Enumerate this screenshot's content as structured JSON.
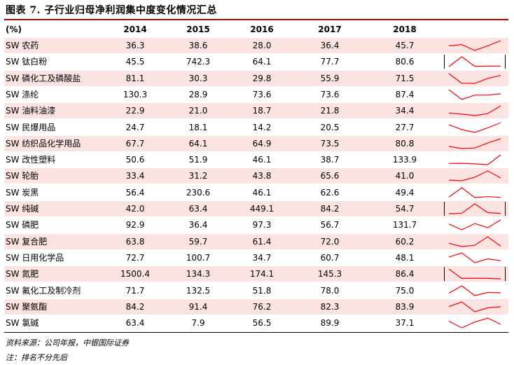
{
  "title": "图表 7. 子行业归母净利润集中度变化情况汇总",
  "table": {
    "unit_header": "(%)",
    "years": [
      "2014",
      "2015",
      "2016",
      "2017",
      "2018"
    ],
    "sparkline_color": "#ff0000",
    "shade_color": "#fbe3e1",
    "rows": [
      {
        "name": "SW 农药",
        "values": [
          36.3,
          38.6,
          28.0,
          36.4,
          45.7
        ],
        "labels": [
          "36.3",
          "38.6",
          "28.0",
          "36.4",
          "45.7"
        ]
      },
      {
        "name": "SW 钛白粉",
        "values": [
          45.5,
          742.3,
          64.1,
          77.7,
          80.6
        ],
        "labels": [
          "45.5",
          "742.3",
          "64.1",
          "77.7",
          "80.6"
        ]
      },
      {
        "name": "SW 磷化工及磷酸盐",
        "values": [
          81.1,
          30.3,
          29.8,
          55.9,
          71.5
        ],
        "labels": [
          "81.1",
          "30.3",
          "29.8",
          "55.9",
          "71.5"
        ]
      },
      {
        "name": "SW 涤纶",
        "values": [
          130.3,
          28.9,
          73.6,
          73.6,
          87.4
        ],
        "labels": [
          "130.3",
          "28.9",
          "73.6",
          "73.6",
          "87.4"
        ]
      },
      {
        "name": "SW 油料油漆",
        "values": [
          22.9,
          21.0,
          18.7,
          21.8,
          34.4
        ],
        "labels": [
          "22.9",
          "21.0",
          "18.7",
          "21.8",
          "34.4"
        ]
      },
      {
        "name": "SW 民爆用品",
        "values": [
          24.7,
          18.1,
          14.2,
          20.5,
          27.7
        ],
        "labels": [
          "24.7",
          "18.1",
          "14.2",
          "20.5",
          "27.7"
        ]
      },
      {
        "name": "SW 纺织品化学用品",
        "values": [
          67.7,
          64.1,
          64.9,
          73.5,
          80.8
        ],
        "labels": [
          "67.7",
          "64.1",
          "64.9",
          "73.5",
          "80.8"
        ]
      },
      {
        "name": "SW 改性塑料",
        "values": [
          50.6,
          51.9,
          46.1,
          38.7,
          133.9
        ],
        "labels": [
          "50.6",
          "51.9",
          "46.1",
          "38.7",
          "133.9"
        ]
      },
      {
        "name": "SW 轮胎",
        "values": [
          33.4,
          31.2,
          43.8,
          65.6,
          41.0
        ],
        "labels": [
          "33.4",
          "31.2",
          "43.8",
          "65.6",
          "41.0"
        ]
      },
      {
        "name": "SW 炭黑",
        "values": [
          56.4,
          230.6,
          46.1,
          62.6,
          49.4
        ],
        "labels": [
          "56.4",
          "230.6",
          "46.1",
          "62.6",
          "49.4"
        ]
      },
      {
        "name": "SW 纯碱",
        "values": [
          42.0,
          63.4,
          449.1,
          84.2,
          54.7
        ],
        "labels": [
          "42.0",
          "63.4",
          "449.1",
          "84.2",
          "54.7"
        ]
      },
      {
        "name": "SW 磷肥",
        "values": [
          92.9,
          36.4,
          97.3,
          56.7,
          131.7
        ],
        "labels": [
          "92.9",
          "36.4",
          "97.3",
          "56.7",
          "131.7"
        ]
      },
      {
        "name": "SW 复合肥",
        "values": [
          63.8,
          59.7,
          61.4,
          72.0,
          60.2
        ],
        "labels": [
          "63.8",
          "59.7",
          "61.4",
          "72.0",
          "60.2"
        ]
      },
      {
        "name": "SW 日用化学品",
        "values": [
          72.7,
          100.7,
          34.7,
          60.7,
          48.1
        ],
        "labels": [
          "72.7",
          "100.7",
          "34.7",
          "60.7",
          "48.1"
        ]
      },
      {
        "name": "SW 氮肥",
        "values": [
          1500.4,
          134.3,
          174.1,
          145.3,
          86.4
        ],
        "labels": [
          "1500.4",
          "134.3",
          "174.1",
          "145.3",
          "86.4"
        ]
      },
      {
        "name": "SW 氟化工及制冷剂",
        "values": [
          71.7,
          132.5,
          51.8,
          78.0,
          75.0
        ],
        "labels": [
          "71.7",
          "132.5",
          "51.8",
          "78.0",
          "75.0"
        ]
      },
      {
        "name": "SW 聚氨酯",
        "values": [
          84.2,
          91.4,
          76.2,
          82.3,
          83.9
        ],
        "labels": [
          "84.2",
          "91.4",
          "76.2",
          "82.3",
          "83.9"
        ]
      },
      {
        "name": "SW 氯碱",
        "values": [
          63.4,
          7.9,
          56.5,
          89.9,
          37.1
        ],
        "labels": [
          "63.4",
          "7.9",
          "56.5",
          "89.9",
          "37.1"
        ]
      }
    ]
  },
  "source": "资料来源：公司年报，中银国际证券",
  "footnote": "注：排名不分先后"
}
